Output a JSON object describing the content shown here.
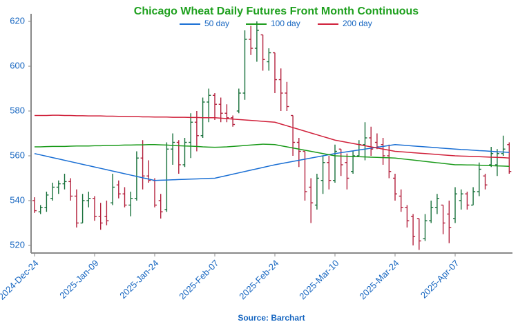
{
  "chart_data": {
    "type": "ohlc",
    "title": "Chicago Wheat Daily Futures Front Month Continuous",
    "source": "Source: Barchart",
    "categories": [
      "2024-Dec-24",
      null,
      null,
      null,
      null,
      null,
      null,
      null,
      null,
      null,
      "2025-Jan-09",
      null,
      null,
      null,
      null,
      null,
      null,
      null,
      null,
      null,
      "2025-Jan-24",
      null,
      null,
      null,
      null,
      null,
      null,
      null,
      null,
      null,
      "2025-Feb-07",
      null,
      null,
      null,
      null,
      null,
      null,
      null,
      null,
      null,
      "2025-Feb-24",
      null,
      null,
      null,
      null,
      null,
      null,
      null,
      null,
      null,
      "2025-Mar-10",
      null,
      null,
      null,
      null,
      null,
      null,
      null,
      null,
      null,
      "2025-Mar-24",
      null,
      null,
      null,
      null,
      null,
      null,
      null,
      null,
      null,
      "2025-Apr-07",
      null,
      null,
      null,
      null,
      null,
      null,
      null,
      null,
      null
    ],
    "open": [
      540,
      535,
      537,
      541,
      546,
      547.5,
      548.5,
      542,
      530,
      540,
      541,
      533,
      533,
      539,
      547,
      543,
      538,
      541,
      559,
      551,
      549,
      540,
      536,
      563,
      566,
      556,
      566,
      575,
      569,
      584,
      587,
      583,
      579,
      577,
      580,
      588,
      612,
      608,
      614,
      602,
      606,
      594,
      588,
      578,
      566,
      562,
      546,
      538,
      549,
      557,
      549,
      563,
      557,
      553,
      560,
      565,
      568,
      566,
      565,
      560,
      550,
      542,
      537,
      533,
      532,
      523,
      531,
      537,
      538,
      534,
      532,
      540,
      543,
      538,
      544,
      551,
      556,
      556,
      561,
      565
    ],
    "high": [
      541.5,
      538,
      544,
      548,
      549,
      552,
      550,
      545,
      543,
      544,
      542,
      539,
      540,
      552,
      549,
      546,
      544,
      562,
      567,
      558,
      550,
      543,
      566,
      570,
      567,
      568,
      579,
      580,
      586,
      590,
      588,
      586,
      583,
      578,
      590,
      616,
      618,
      620,
      614,
      608,
      606,
      599,
      593,
      578,
      568,
      562,
      550,
      552,
      560,
      560,
      565,
      563,
      561,
      562,
      567,
      575,
      573,
      570,
      568,
      565,
      552,
      545,
      538,
      534,
      532,
      534,
      540,
      543,
      538,
      540,
      546,
      545,
      544,
      546,
      557,
      552,
      564,
      563,
      569,
      566
    ],
    "low": [
      534.5,
      534,
      535,
      540,
      543,
      545,
      540,
      528,
      530,
      537,
      531,
      527,
      529,
      538,
      541,
      537,
      533,
      540,
      545,
      548,
      537,
      532,
      535,
      556,
      552,
      555,
      559,
      562,
      568,
      575,
      576,
      575,
      575,
      573,
      579,
      585,
      605,
      602,
      598,
      598,
      588,
      580,
      580,
      560,
      555,
      540,
      530,
      536,
      543,
      545,
      548,
      551,
      545,
      552,
      560,
      558,
      560,
      563,
      556,
      550,
      540,
      535,
      528,
      520,
      518,
      522,
      530,
      534,
      525,
      521,
      530,
      536,
      536,
      538,
      542,
      545,
      555,
      551,
      560,
      552
    ],
    "close": [
      535.5,
      537,
      542.5,
      546,
      547.5,
      548.5,
      542,
      530,
      540,
      541,
      533,
      530,
      531,
      546,
      543,
      538,
      541,
      559,
      551,
      549,
      538,
      535,
      563,
      566,
      556,
      566,
      575,
      569,
      584,
      587,
      583,
      579,
      577,
      574,
      588,
      612,
      608,
      616,
      603,
      606,
      594,
      588,
      582,
      566,
      562,
      544,
      539,
      550,
      557,
      549,
      562,
      556,
      550,
      560,
      565,
      568,
      563,
      564,
      560,
      553,
      543,
      537,
      531,
      524,
      522,
      531,
      537,
      541,
      530,
      528,
      543,
      543,
      538,
      544,
      554,
      547,
      561,
      561,
      563,
      553
    ],
    "up_color": "#17703a",
    "down_color": "#b3203c",
    "series": [
      {
        "name": "50 day",
        "color": "#1a6fd4",
        "values": [
          561,
          560.4,
          559.8,
          559.2,
          558.6,
          558,
          557.4,
          556.8,
          556.2,
          555.6,
          555,
          554.4,
          553.8,
          553.2,
          552.6,
          552,
          551.4,
          550.8,
          550.2,
          549.6,
          549,
          549.1,
          549.2,
          549.3,
          549.4,
          549.5,
          549.6,
          549.7,
          549.8,
          549.9,
          550,
          550.6,
          551.2,
          551.8,
          552.4,
          553,
          553.6,
          554.2,
          554.8,
          555.4,
          556,
          556.5,
          557,
          557.5,
          558,
          558.5,
          559,
          559.5,
          560,
          560.5,
          561,
          561.4,
          561.8,
          562.2,
          562.6,
          563,
          563.4,
          563.8,
          564.2,
          564.6,
          565,
          564.8,
          564.6,
          564.4,
          564.2,
          564,
          563.8,
          563.6,
          563.4,
          563.2,
          563,
          562.8,
          562.7,
          562.5,
          562.3,
          562.2,
          562,
          561.8,
          561.7,
          561.5
        ]
      },
      {
        "name": "100 day",
        "color": "#1a9a1a",
        "values": [
          564,
          564,
          564.1,
          564.2,
          564.2,
          564.2,
          564.3,
          564.4,
          564.4,
          564.4,
          564.5,
          564.5,
          564.6,
          564.6,
          564.7,
          564.8,
          564.8,
          564.9,
          564.9,
          565,
          565,
          564.9,
          564.8,
          564.6,
          564.5,
          564.4,
          564.3,
          564.2,
          564,
          563.9,
          563.8,
          563.9,
          564,
          564.2,
          564.4,
          564.6,
          564.8,
          565,
          565.2,
          565.1,
          565,
          564.5,
          564,
          563.5,
          563,
          562.5,
          562,
          561.5,
          561,
          560.5,
          560,
          559.9,
          559.8,
          559.7,
          559.6,
          559.5,
          559.4,
          559.3,
          559.2,
          559.1,
          559,
          558.7,
          558.4,
          558.1,
          557.8,
          557.5,
          557.2,
          556.9,
          556.6,
          556.3,
          556,
          556,
          555.9,
          555.9,
          555.8,
          555.7,
          555.6,
          555.5,
          555.4,
          555.3
        ]
      },
      {
        "name": "200 day",
        "color": "#d0203a",
        "values": [
          578,
          578,
          578,
          578.1,
          578.1,
          578,
          578,
          577.9,
          577.9,
          577.8,
          577.8,
          577.8,
          577.7,
          577.7,
          577.6,
          577.6,
          577.5,
          577.5,
          577.4,
          577.4,
          577.3,
          577.3,
          577.3,
          577.2,
          577.2,
          577.2,
          577.1,
          577.1,
          577,
          577,
          577,
          576.8,
          576.6,
          576.4,
          576.2,
          576,
          575.8,
          575.6,
          575.4,
          575.2,
          575,
          574.2,
          573.4,
          572.6,
          571.8,
          571,
          570.2,
          569.4,
          568.6,
          567.8,
          567,
          566.5,
          566,
          565.5,
          565,
          564.5,
          564,
          563.5,
          563,
          562.5,
          562,
          561.8,
          561.6,
          561.4,
          561.2,
          561,
          560.8,
          560.6,
          560.4,
          560.2,
          560,
          559.9,
          559.8,
          559.7,
          559.6,
          559.5,
          559.4,
          559.3,
          559.2,
          559
        ]
      }
    ],
    "ylim": [
      516.6,
      623.4
    ],
    "yticks": [
      520,
      540,
      560,
      580,
      600,
      620
    ],
    "legend": "top"
  }
}
